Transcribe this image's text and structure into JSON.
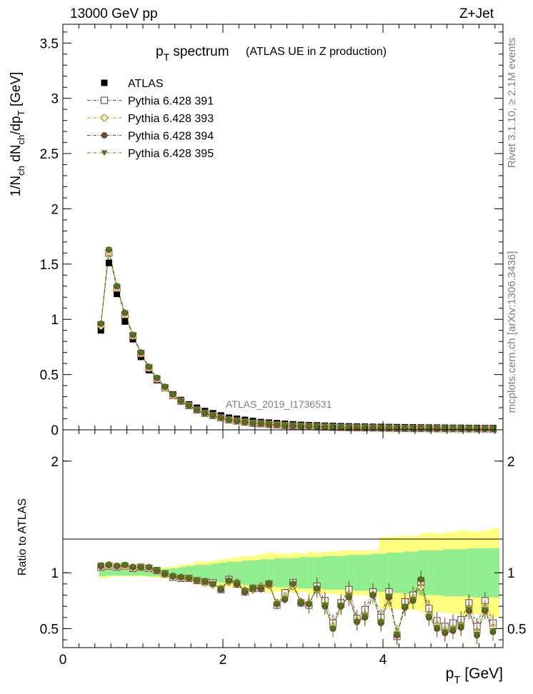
{
  "header": {
    "left": "13000 GeV pp",
    "right": "Z+Jet"
  },
  "side_labels": {
    "top": "Rivet 3.1.10, ≥ 2.1M events",
    "bottom": "mcplots.cern.ch [arXiv:1306.3436]"
  },
  "chart_data": [
    {
      "type": "scatter",
      "title_main": "p",
      "title_sub": "T",
      "title_rest": " spectrum",
      "subtitle": "(ATLAS UE in Z production)",
      "ylabel_parts": [
        "1/N",
        "ch",
        " dN",
        "ch",
        "/dp",
        "T",
        " [GeV]"
      ],
      "watermark": "ATLAS_2019_I1736531",
      "ylim": [
        0,
        3.67
      ],
      "xlim": [
        0,
        5.5
      ],
      "yticks": [
        "0",
        "0.5",
        "1",
        "1.5",
        "2",
        "2.5",
        "3",
        "3.5"
      ],
      "ytick_values": [
        0,
        0.5,
        1,
        1.5,
        2,
        2.5,
        3,
        3.5
      ],
      "legend_position": "top-left",
      "x": [
        0.475,
        0.575,
        0.675,
        0.775,
        0.875,
        0.975,
        1.075,
        1.175,
        1.275,
        1.375,
        1.475,
        1.575,
        1.675,
        1.775,
        1.875,
        1.975,
        2.075,
        2.175,
        2.275,
        2.375,
        2.475,
        2.575,
        2.675,
        2.775,
        2.875,
        2.975,
        3.075,
        3.175,
        3.275,
        3.375,
        3.475,
        3.575,
        3.675,
        3.775,
        3.875,
        3.975,
        4.075,
        4.175,
        4.275,
        4.375,
        4.475,
        4.575,
        4.675,
        4.775,
        4.875,
        4.975,
        5.075,
        5.175,
        5.275,
        5.375
      ],
      "series": [
        {
          "name": "ATLAS",
          "marker": "square-filled",
          "color": "#000000",
          "values": [
            0.9,
            1.51,
            1.23,
            0.98,
            0.82,
            0.66,
            0.54,
            0.45,
            0.38,
            0.32,
            0.27,
            0.23,
            0.2,
            0.17,
            0.15,
            0.13,
            0.11,
            0.1,
            0.09,
            0.08,
            0.07,
            0.065,
            0.06,
            0.055,
            0.05,
            0.045,
            0.042,
            0.04,
            0.037,
            0.035,
            0.033,
            0.031,
            0.029,
            0.028,
            0.027,
            0.026,
            0.025,
            0.024,
            0.023,
            0.022,
            0.021,
            0.02,
            0.02,
            0.019,
            0.018,
            0.018,
            0.017,
            0.017,
            0.016,
            0.016
          ]
        },
        {
          "name": "Pythia 6.428 391",
          "marker": "square-open",
          "color": "#6b3a3a",
          "values": [
            0.95,
            1.6,
            1.28,
            1.04,
            0.85,
            0.69,
            0.56,
            0.46,
            0.38,
            0.31,
            0.26,
            0.22,
            0.18,
            0.15,
            0.13,
            0.11,
            0.09,
            0.08,
            0.07,
            0.06,
            0.055,
            0.05,
            0.045,
            0.04,
            0.035,
            0.032,
            0.03,
            0.028,
            0.026,
            0.024,
            0.022,
            0.02,
            0.019,
            0.018,
            0.017,
            0.016,
            0.015,
            0.014,
            0.013,
            0.012,
            0.012,
            0.011,
            0.011,
            0.01,
            0.01,
            0.01,
            0.009,
            0.009,
            0.009,
            0.008
          ]
        },
        {
          "name": "Pythia 6.428 393",
          "marker": "cross-open",
          "color": "#b8860b",
          "values": [
            0.94,
            1.61,
            1.29,
            1.05,
            0.85,
            0.69,
            0.56,
            0.46,
            0.38,
            0.31,
            0.26,
            0.22,
            0.18,
            0.15,
            0.13,
            0.11,
            0.09,
            0.08,
            0.07,
            0.06,
            0.055,
            0.05,
            0.045,
            0.04,
            0.035,
            0.032,
            0.03,
            0.028,
            0.026,
            0.024,
            0.022,
            0.02,
            0.019,
            0.018,
            0.017,
            0.016,
            0.015,
            0.014,
            0.013,
            0.012,
            0.012,
            0.011,
            0.011,
            0.01,
            0.01,
            0.01,
            0.009,
            0.009,
            0.009,
            0.008
          ]
        },
        {
          "name": "Pythia 6.428 394",
          "marker": "circle-filled",
          "color": "#6b4a2e",
          "values": [
            0.96,
            1.63,
            1.3,
            1.06,
            0.86,
            0.7,
            0.57,
            0.47,
            0.39,
            0.32,
            0.26,
            0.22,
            0.18,
            0.15,
            0.13,
            0.11,
            0.09,
            0.08,
            0.07,
            0.06,
            0.055,
            0.05,
            0.045,
            0.04,
            0.035,
            0.032,
            0.03,
            0.028,
            0.026,
            0.024,
            0.022,
            0.02,
            0.019,
            0.018,
            0.017,
            0.016,
            0.015,
            0.014,
            0.013,
            0.012,
            0.012,
            0.011,
            0.011,
            0.01,
            0.01,
            0.01,
            0.009,
            0.009,
            0.009,
            0.008
          ]
        },
        {
          "name": "Pythia 6.428 395",
          "marker": "triangle-down-filled",
          "color": "#4a7a1e",
          "values": [
            0.96,
            1.63,
            1.3,
            1.06,
            0.86,
            0.7,
            0.57,
            0.47,
            0.39,
            0.32,
            0.26,
            0.22,
            0.18,
            0.15,
            0.13,
            0.11,
            0.09,
            0.08,
            0.07,
            0.06,
            0.055,
            0.05,
            0.045,
            0.04,
            0.035,
            0.032,
            0.03,
            0.028,
            0.026,
            0.024,
            0.022,
            0.02,
            0.019,
            0.018,
            0.017,
            0.016,
            0.015,
            0.014,
            0.013,
            0.012,
            0.012,
            0.011,
            0.011,
            0.01,
            0.01,
            0.01,
            0.009,
            0.009,
            0.009,
            0.008
          ]
        }
      ]
    },
    {
      "type": "scatter",
      "ylabel": "Ratio to ATLAS",
      "ylim": [
        0.33,
        2.28
      ],
      "xlim": [
        0,
        5.5
      ],
      "yticks": [
        "0.5",
        "1",
        "2"
      ],
      "ytick_values": [
        0.5,
        1,
        2
      ],
      "xticks": [
        "0",
        "2",
        "4"
      ],
      "xtick_values": [
        0,
        2,
        4
      ],
      "xlabel_main": "p",
      "xlabel_sub": "T",
      "xlabel_rest": " [GeV]",
      "band_colors": {
        "stat": "#90ee90",
        "total": "#ffff80"
      },
      "band_x": [
        0.45,
        0.55,
        0.65,
        0.75,
        0.85,
        0.95,
        1.05,
        1.15,
        1.25,
        1.35,
        1.45,
        1.55,
        1.65,
        1.75,
        1.85,
        1.95,
        2.05,
        2.15,
        2.25,
        2.35,
        2.45,
        2.55,
        2.65,
        2.75,
        2.85,
        2.95,
        3.05,
        3.15,
        3.25,
        3.35,
        3.45,
        3.55,
        3.65,
        3.75,
        3.85,
        3.95,
        4.05,
        4.15,
        4.25,
        4.35,
        4.45,
        4.55,
        4.65,
        4.75,
        4.85,
        4.95,
        5.05,
        5.15,
        5.25,
        5.35,
        5.45
      ],
      "band_green": [
        0.03,
        0.025,
        0.025,
        0.025,
        0.025,
        0.025,
        0.03,
        0.03,
        0.035,
        0.04,
        0.05,
        0.06,
        0.07,
        0.07,
        0.08,
        0.09,
        0.1,
        0.1,
        0.11,
        0.11,
        0.12,
        0.12,
        0.13,
        0.13,
        0.13,
        0.14,
        0.14,
        0.14,
        0.15,
        0.15,
        0.15,
        0.16,
        0.16,
        0.16,
        0.17,
        0.17,
        0.18,
        0.18,
        0.19,
        0.19,
        0.2,
        0.2,
        0.2,
        0.21,
        0.21,
        0.21,
        0.22,
        0.22,
        0.22,
        0.22
      ],
      "band_yellow": [
        0.05,
        0.04,
        0.035,
        0.035,
        0.035,
        0.035,
        0.04,
        0.045,
        0.05,
        0.06,
        0.07,
        0.08,
        0.1,
        0.1,
        0.11,
        0.12,
        0.13,
        0.14,
        0.15,
        0.15,
        0.17,
        0.18,
        0.17,
        0.17,
        0.18,
        0.17,
        0.19,
        0.18,
        0.19,
        0.19,
        0.2,
        0.2,
        0.2,
        0.2,
        0.2,
        0.32,
        0.32,
        0.33,
        0.33,
        0.33,
        0.35,
        0.36,
        0.35,
        0.36,
        0.37,
        0.38,
        0.37,
        0.37,
        0.38,
        0.4
      ],
      "series": [
        {
          "name": "Pythia 6.428 391",
          "marker": "square-open",
          "color": "#6b3a3a",
          "values": [
            1.05,
            1.06,
            1.05,
            1.06,
            1.04,
            1.05,
            1.04,
            1.02,
            0.99,
            0.96,
            0.95,
            0.95,
            0.93,
            0.92,
            0.91,
            0.85,
            0.94,
            0.9,
            0.83,
            0.86,
            0.86,
            0.9,
            0.71,
            0.82,
            0.91,
            0.73,
            0.71,
            0.88,
            0.75,
            0.55,
            0.73,
            0.85,
            0.59,
            0.67,
            0.83,
            0.6,
            0.83,
            0.43,
            0.74,
            0.8,
            0.92,
            0.68,
            0.57,
            0.52,
            0.55,
            0.58,
            0.73,
            0.52,
            0.75,
            0.55
          ]
        },
        {
          "name": "Pythia 6.428 393",
          "marker": "cross-open",
          "color": "#b8860b",
          "values": [
            1.06,
            1.07,
            1.06,
            1.06,
            1.05,
            1.05,
            1.04,
            1.02,
            0.99,
            0.97,
            0.96,
            0.95,
            0.93,
            0.91,
            0.89,
            0.86,
            0.92,
            0.91,
            0.84,
            0.85,
            0.88,
            0.89,
            0.73,
            0.79,
            0.88,
            0.74,
            0.73,
            0.85,
            0.71,
            0.52,
            0.7,
            0.8,
            0.57,
            0.62,
            0.8,
            0.56,
            0.78,
            0.46,
            0.69,
            0.77,
            0.87,
            0.62,
            0.53,
            0.48,
            0.5,
            0.53,
            0.68,
            0.47,
            0.69,
            0.51
          ]
        },
        {
          "name": "Pythia 6.428 394",
          "marker": "circle-filled",
          "color": "#6b4a2e",
          "values": [
            1.06,
            1.07,
            1.06,
            1.07,
            1.05,
            1.05,
            1.05,
            1.02,
            0.99,
            0.97,
            0.96,
            0.95,
            0.93,
            0.92,
            0.9,
            0.85,
            0.93,
            0.9,
            0.83,
            0.86,
            0.86,
            0.9,
            0.72,
            0.76,
            0.9,
            0.73,
            0.72,
            0.86,
            0.7,
            0.5,
            0.7,
            0.78,
            0.56,
            0.6,
            0.8,
            0.55,
            0.78,
            0.44,
            0.69,
            0.75,
            0.94,
            0.6,
            0.5,
            0.46,
            0.48,
            0.51,
            0.66,
            0.44,
            0.66,
            0.47
          ]
        },
        {
          "name": "Pythia 6.428 395",
          "marker": "triangle-down-filled",
          "color": "#4a7a1e",
          "values": [
            1.07,
            1.07,
            1.06,
            1.07,
            1.05,
            1.05,
            1.05,
            1.03,
            1.0,
            0.97,
            0.96,
            0.95,
            0.93,
            0.92,
            0.9,
            0.86,
            0.93,
            0.91,
            0.84,
            0.86,
            0.87,
            0.9,
            0.72,
            0.77,
            0.9,
            0.74,
            0.72,
            0.86,
            0.71,
            0.5,
            0.71,
            0.79,
            0.56,
            0.61,
            0.8,
            0.56,
            0.79,
            0.45,
            0.7,
            0.76,
            0.94,
            0.61,
            0.51,
            0.47,
            0.49,
            0.52,
            0.67,
            0.45,
            0.67,
            0.48
          ]
        }
      ]
    }
  ]
}
